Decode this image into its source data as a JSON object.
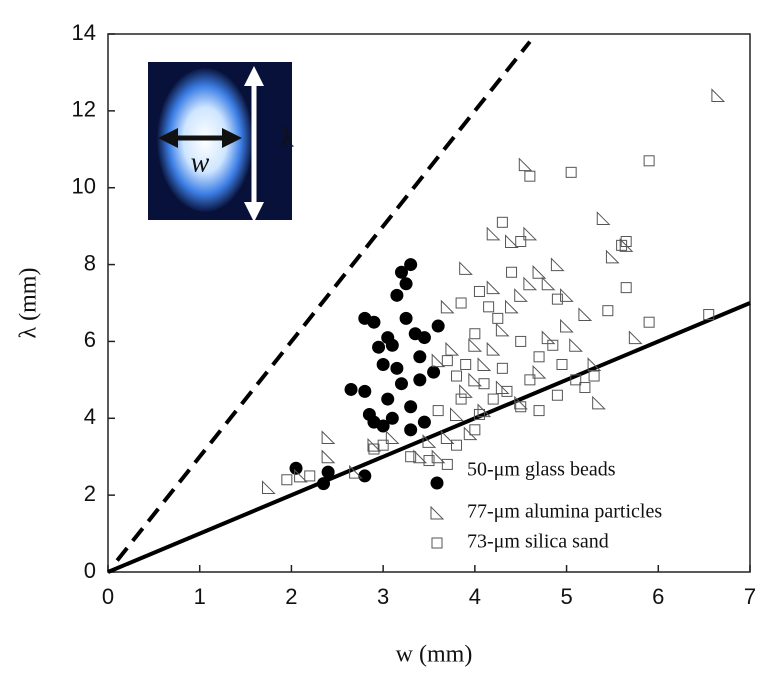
{
  "chart_data": {
    "type": "scatter",
    "xlabel": "w (mm)",
    "ylabel": "λ (mm)",
    "xlim": [
      0,
      7
    ],
    "ylim": [
      0,
      14
    ],
    "xticks": [
      0,
      1,
      2,
      3,
      4,
      5,
      6,
      7
    ],
    "yticks": [
      0,
      2,
      4,
      6,
      8,
      10,
      12,
      14
    ],
    "legend": "lower right",
    "annotations": [
      "w",
      "λ"
    ],
    "series": [
      {
        "name": "50-μm glass beads",
        "marker": "circle",
        "color": "#000000",
        "x": [
          2.05,
          2.35,
          2.4,
          2.8,
          2.65,
          2.8,
          2.85,
          2.8,
          2.9,
          2.95,
          3.0,
          3.05,
          3.1,
          3.15,
          3.2,
          3.3,
          3.25,
          3.35,
          3.4,
          3.45,
          3.6,
          3.55,
          3.3,
          3.3,
          3.1,
          3.0,
          2.9,
          3.2,
          3.4,
          3.15,
          3.05,
          3.25,
          3.45
        ],
        "values": [
          2.7,
          2.3,
          2.6,
          2.5,
          4.75,
          4.7,
          4.1,
          6.6,
          6.5,
          5.85,
          5.4,
          6.1,
          5.9,
          7.2,
          7.8,
          8.0,
          7.5,
          6.2,
          5.6,
          6.1,
          6.4,
          5.2,
          4.3,
          3.7,
          4.0,
          3.8,
          3.9,
          4.9,
          5.0,
          5.3,
          4.5,
          6.6,
          3.9
        ]
      },
      {
        "name": "77-μm alumina particles",
        "marker": "triangle",
        "color": "#555555",
        "x": [
          1.75,
          2.1,
          2.4,
          2.4,
          2.7,
          2.9,
          3.1,
          3.4,
          3.5,
          3.6,
          3.7,
          3.8,
          3.9,
          4.0,
          4.1,
          4.2,
          4.3,
          4.4,
          4.5,
          4.6,
          4.7,
          4.8,
          4.6,
          4.4,
          4.2,
          4.9,
          5.0,
          5.1,
          5.3,
          5.35,
          5.4,
          5.5,
          5.65,
          5.75,
          6.65,
          4.55,
          3.9,
          3.7,
          3.6,
          4.0,
          4.3,
          4.5,
          4.7,
          4.8,
          5.2,
          5.0,
          4.1,
          3.95,
          3.75,
          4.2
        ],
        "values": [
          2.2,
          2.5,
          3.5,
          3.0,
          2.6,
          3.3,
          3.5,
          3.0,
          3.4,
          3.0,
          3.5,
          4.1,
          4.7,
          5.0,
          5.4,
          5.8,
          6.3,
          6.9,
          7.2,
          7.5,
          7.8,
          7.5,
          8.8,
          8.6,
          8.8,
          8.0,
          6.4,
          5.9,
          5.4,
          4.4,
          9.2,
          8.2,
          8.5,
          6.1,
          12.4,
          10.6,
          7.9,
          6.9,
          5.5,
          5.9,
          4.8,
          4.4,
          5.2,
          6.1,
          6.7,
          7.2,
          4.2,
          3.6,
          5.8,
          7.4
        ]
      },
      {
        "name": "73-μm silica sand",
        "marker": "square",
        "color": "#555555",
        "x": [
          1.95,
          2.2,
          2.9,
          3.0,
          3.3,
          3.5,
          3.7,
          3.8,
          4.0,
          4.05,
          4.2,
          4.35,
          4.5,
          4.7,
          4.9,
          5.1,
          5.2,
          5.3,
          4.6,
          5.05,
          5.9,
          4.3,
          4.5,
          5.65,
          5.6,
          5.65,
          5.9,
          6.55,
          5.45,
          4.9,
          4.4,
          4.05,
          3.85,
          4.15,
          3.7,
          3.8,
          3.9,
          4.0,
          4.25,
          4.5,
          4.7,
          4.85,
          4.3,
          4.6,
          4.95,
          3.6,
          3.85,
          4.1
        ],
        "values": [
          2.4,
          2.5,
          3.2,
          3.3,
          3.0,
          2.9,
          2.8,
          3.3,
          3.7,
          4.1,
          4.5,
          4.7,
          4.3,
          4.2,
          4.6,
          5.0,
          4.8,
          5.1,
          10.3,
          10.4,
          10.7,
          9.1,
          8.6,
          8.6,
          8.5,
          7.4,
          6.5,
          6.7,
          6.8,
          7.1,
          7.8,
          7.3,
          7.0,
          6.9,
          5.5,
          5.1,
          5.4,
          6.2,
          6.6,
          6.0,
          5.6,
          5.9,
          5.3,
          5.0,
          5.4,
          4.2,
          4.5,
          4.9
        ]
      }
    ],
    "lines": [
      {
        "style": "dashed",
        "color": "#000000",
        "x": [
          0.1,
          4.6
        ],
        "values": [
          0.3,
          13.8
        ]
      },
      {
        "style": "solid",
        "color": "#000000",
        "x": [
          0,
          7
        ],
        "values": [
          0,
          7
        ]
      }
    ]
  }
}
